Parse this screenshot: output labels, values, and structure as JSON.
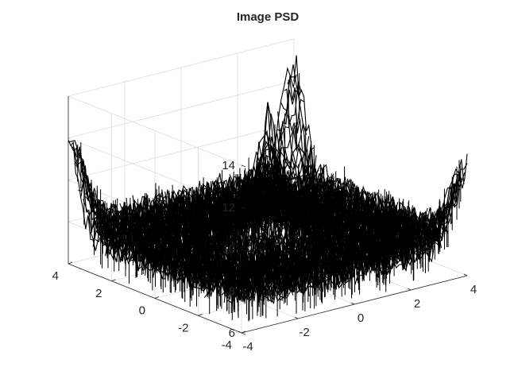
{
  "chart_data": {
    "type": "surface",
    "title": "Image PSD",
    "xlabel": "",
    "ylabel": "",
    "zlabel": "",
    "xlim": [
      -4,
      4
    ],
    "ylim": [
      -4,
      4
    ],
    "zlim": [
      6,
      14
    ],
    "x_ticks": [
      -4,
      -2,
      0,
      2,
      4
    ],
    "y_ticks": [
      -4,
      -2,
      0,
      2,
      4
    ],
    "z_ticks": [
      6,
      8,
      10,
      12,
      14
    ],
    "x_tick_labels": [
      "-4",
      "-2",
      "0",
      "2",
      "4"
    ],
    "y_tick_labels": [
      "-4",
      "-2",
      "0",
      "2",
      "4"
    ],
    "z_tick_labels": [
      "6",
      "8",
      "10",
      "12",
      "14"
    ],
    "grid": true,
    "surface_color": "#000000",
    "surface_description_points": [
      {
        "x": 0,
        "y": 0,
        "z": 13.0
      },
      {
        "x": -4,
        "y": 4,
        "z": 11.8
      },
      {
        "x": 4,
        "y": -4,
        "z": 10.6
      },
      {
        "x": 4,
        "y": 4,
        "z": 12.5
      },
      {
        "x": -4,
        "y": -4,
        "z": 7.0
      },
      {
        "x": 0,
        "y": 4,
        "z": 8.6
      },
      {
        "x": 4,
        "y": 0,
        "z": 8.2
      },
      {
        "x": -4,
        "y": 0,
        "z": 7.6
      },
      {
        "x": 0,
        "y": -4,
        "z": 7.2
      }
    ]
  }
}
